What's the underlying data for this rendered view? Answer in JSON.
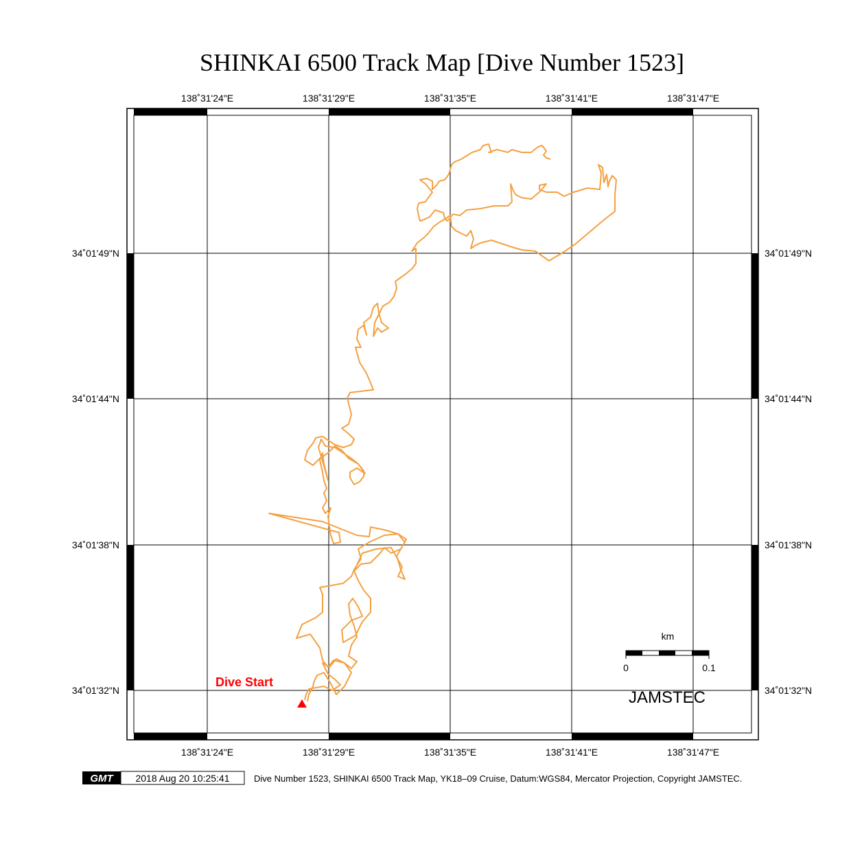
{
  "title": "SHINKAI 6500 Track Map [Dive Number 1523]",
  "lon_ticks": [
    "138˚31'24\"E",
    "138˚31'29\"E",
    "138˚31'35\"E",
    "138˚31'41\"E",
    "138˚31'47\"E"
  ],
  "lat_ticks_left": [
    "34˚01'49\"N",
    "34˚01'44\"N",
    "34˚01'38\"N",
    "34˚01'32\"N"
  ],
  "lat_ticks_right": [
    "34˚01'49\"N",
    "34˚01'44\"N",
    "34˚01'38\"N",
    "34˚01'32\"N"
  ],
  "track_color": "#f4a040",
  "start_marker": {
    "label": "Dive Start",
    "color": "#ff0000"
  },
  "scale_bar": {
    "unit": "km",
    "start": "0",
    "end": "0.1"
  },
  "agency": "JAMSTEC",
  "footer": {
    "logo": "GMT",
    "timestamp": "2018 Aug 20 10:25:41",
    "caption": "Dive Number 1523, SHINKAI 6500 Track Map, YK18–09 Cruise, Datum:WGS84, Mercator Projection, Copyright JAMSTEC."
  }
}
